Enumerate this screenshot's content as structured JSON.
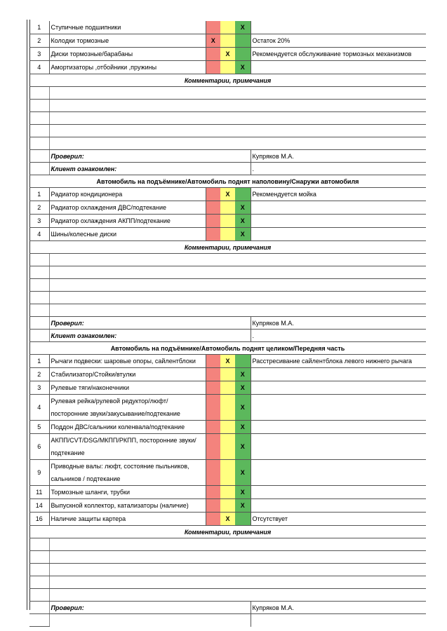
{
  "colors": {
    "critical": "#f4837d",
    "warning": "#ffff80",
    "ok": "#5cb85c"
  },
  "mark": "X",
  "labels": {
    "comments": "Комментарии, примечания",
    "checked_by": "Проверил:",
    "client_ack": "Клиент ознакомлен:"
  },
  "sections": [
    {
      "title": "",
      "items": [
        {
          "num": "1",
          "desc": "Ступичные подшипники",
          "status": "ok",
          "note": ""
        },
        {
          "num": "2",
          "desc": "Колодки тормозные",
          "status": "critical",
          "note": "Остаток 20%"
        },
        {
          "num": "3",
          "desc": "Диски тормозные/барабаны",
          "status": "warning",
          "note": "Рекомендуется обслуживание тормозных механизмов"
        },
        {
          "num": "4",
          "desc": "Амортизаторы ,отбойники ,пружины",
          "status": "ok",
          "note": ""
        }
      ],
      "checked_by": "Купряков М.А.",
      "client_ack": "."
    },
    {
      "title": "Автомобиль на подъёмнике/Автомобиль поднят наполовину/Снаружи автомобиля",
      "items": [
        {
          "num": "1",
          "desc": "Радиатор кондиционера",
          "status": "warning",
          "note": "Рекомендуется мойка"
        },
        {
          "num": "2",
          "desc": "Радиатор охлаждения ДВС/подтекание",
          "status": "ok",
          "note": ""
        },
        {
          "num": "3",
          "desc": "Радиатор охлаждения АКПП/подтекание",
          "status": "ok",
          "note": ""
        },
        {
          "num": "4",
          "desc": "Шины/колесные диски",
          "status": "ok",
          "note": ""
        }
      ],
      "checked_by": "Купряков М.А.",
      "client_ack": "."
    },
    {
      "title": "Автомобиль на подъёмнике/Автомобиль поднят целиком/Передняя часть",
      "items": [
        {
          "num": "1",
          "desc": "Рычаги подвески: шаровые опоры, сайлентблоки",
          "status": "warning",
          "note": "Расстресивание сайлентблока левого нижнего рычага"
        },
        {
          "num": "2",
          "desc": "Стабилизатор/Стойки/втулки",
          "status": "ok",
          "note": ""
        },
        {
          "num": "3",
          "desc": "Рулевые тяги/наконечники",
          "status": "ok",
          "note": ""
        },
        {
          "num": "4",
          "desc": "Рулевая рейка/рулевой редуктор/люфт/посторонние звуки/закусывание/подтекание",
          "status": "ok",
          "note": "",
          "tall": true
        },
        {
          "num": "5",
          "desc": "Поддон ДВС/сальники коленвала/подтекание",
          "status": "ok",
          "note": ""
        },
        {
          "num": "6",
          "desc": "АКПП/CVT/DSG/МКПП/РКПП, посторонние звуки/ подтекание",
          "status": "ok",
          "note": "",
          "tall": true
        },
        {
          "num": "9",
          "desc": "Приводные валы: люфт, состояние пыльников, сальников / подтекание",
          "status": "ok",
          "note": "",
          "tall": true
        },
        {
          "num": "11",
          "desc": "Тормозные шланги, трубки",
          "status": "ok",
          "note": ""
        },
        {
          "num": "14",
          "desc": "Выпускной коллектор, катализаторы (наличие)",
          "status": "ok",
          "note": ""
        },
        {
          "num": "16",
          "desc": "Наличие защиты картера",
          "status": "warning",
          "note": "Отсутствует"
        }
      ],
      "checked_by": "Купряков М.А.",
      "client_ack": ""
    }
  ]
}
